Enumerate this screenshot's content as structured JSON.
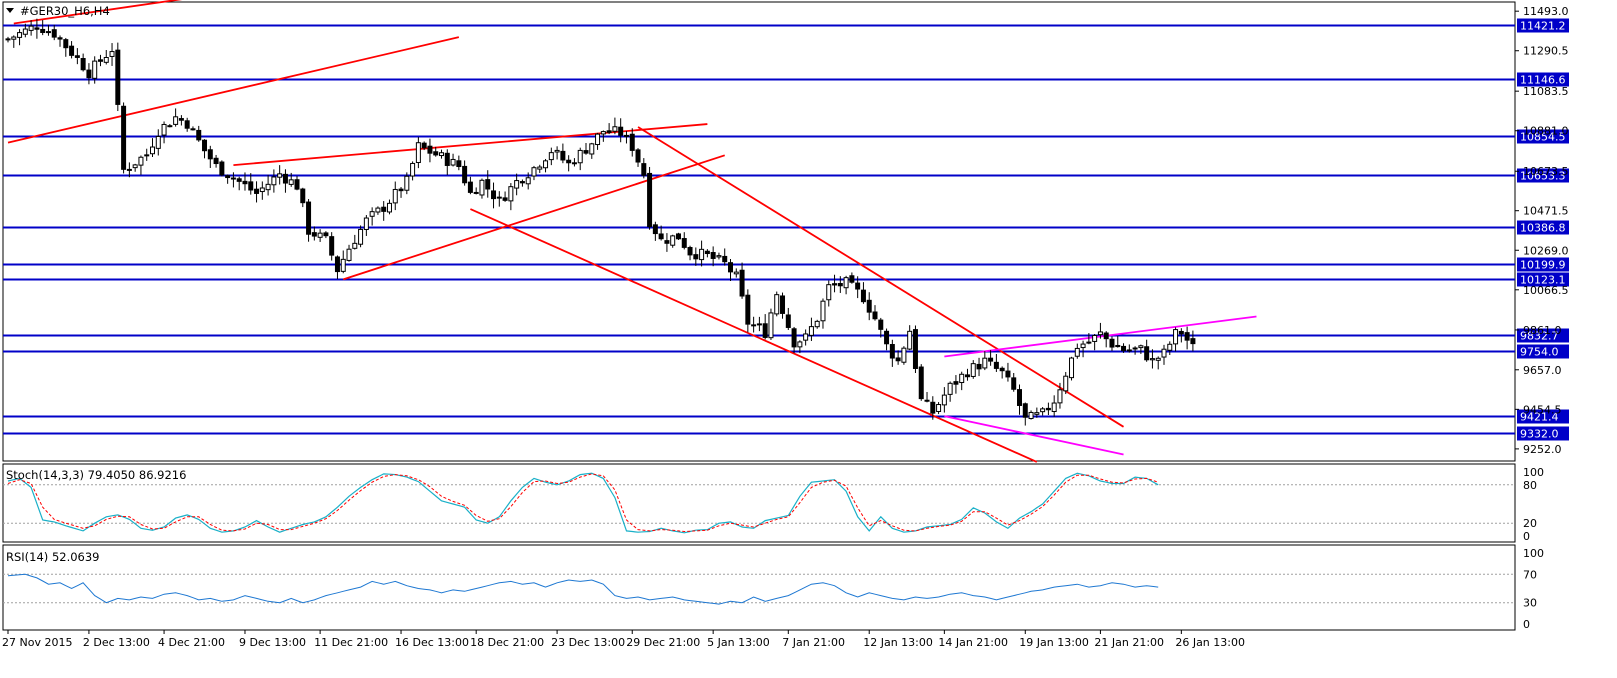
{
  "window": {
    "title": "#GER30_H6,H4",
    "menu_icon": "triangle-down-icon"
  },
  "colors": {
    "background": "#ffffff",
    "frame": "#000000",
    "level_line": "#0000c8",
    "level_label_bg": "#0000c8",
    "level_label_text": "#ffffff",
    "trendline_red": "#ff0000",
    "trendline_magenta": "#ff00ff",
    "bull_body": "#ffffff",
    "bear_body": "#000000",
    "stoch_main": "#1ab0c8",
    "stoch_signal": "#ff0000",
    "rsi": "#1e78d2",
    "indicator_level": "#a0a0a0"
  },
  "price_axis": {
    "ticks": [
      "11493.0",
      "11290.5",
      "11083.5",
      "10881.0",
      "10673.5",
      "10471.5",
      "10269.0",
      "10066.5",
      "9861.0",
      "9657.0",
      "9454.5",
      "9252.0"
    ],
    "tick_values": [
      11493.0,
      11290.5,
      11083.5,
      10881.0,
      10673.5,
      10471.5,
      10269.0,
      10066.5,
      9861.0,
      9657.0,
      9454.5,
      9252.0
    ]
  },
  "time_axis": {
    "labels": [
      "27 Nov 2015",
      "2 Dec 13:00",
      "4 Dec 21:00",
      "9 Dec 13:00",
      "11 Dec 21:00",
      "16 Dec 13:00",
      "18 Dec 21:00",
      "23 Dec 13:00",
      "29 Dec 21:00",
      "5 Jan 13:00",
      "7 Jan 21:00",
      "12 Jan 13:00",
      "14 Jan 21:00",
      "19 Jan 13:00",
      "21 Jan 21:00",
      "26 Jan 13:00"
    ],
    "label_bars": [
      0,
      14,
      27,
      41,
      54,
      68,
      81,
      95,
      108,
      122,
      135,
      149,
      162,
      176,
      189,
      203
    ]
  },
  "levels": [
    {
      "label": "11421.2",
      "value": 11421.2
    },
    {
      "label": "11146.6",
      "value": 11146.6
    },
    {
      "label": "10854.5",
      "value": 10854.5
    },
    {
      "label": "10653.3",
      "value": 10653.3
    },
    {
      "label": "10386.8",
      "value": 10386.8
    },
    {
      "label": "10199.9",
      "value": 10199.9
    },
    {
      "label": "10123.1",
      "value": 10123.1
    },
    {
      "label": "9832.7",
      "value": 9832.7
    },
    {
      "label": "9754.0",
      "value": 9754.0
    },
    {
      "label": "9421.4",
      "value": 9421.4
    },
    {
      "label": "9332.0",
      "value": 9332.0
    }
  ],
  "trendlines": [
    {
      "color": "red",
      "bar1": 1,
      "p1": 11430,
      "bar2": 50,
      "p2": 11640
    },
    {
      "color": "red",
      "bar1": 0,
      "p1": 10820,
      "bar2": 78,
      "p2": 11360
    },
    {
      "color": "red",
      "bar1": 39,
      "p1": 10705,
      "bar2": 121,
      "p2": 10915
    },
    {
      "color": "red",
      "bar1": 58,
      "p1": 10120,
      "bar2": 124,
      "p2": 10755
    },
    {
      "color": "red",
      "bar1": 80,
      "p1": 10480,
      "bar2": 178,
      "p2": 9185
    },
    {
      "color": "red",
      "bar1": 109,
      "p1": 10900,
      "bar2": 193,
      "p2": 9365
    },
    {
      "color": "magenta",
      "bar1": 162,
      "p1": 9725,
      "bar2": 216,
      "p2": 9930
    },
    {
      "color": "magenta",
      "bar1": 162,
      "p1": 9420,
      "bar2": 193,
      "p2": 9223
    }
  ],
  "stochastic": {
    "label": "Stoch(14,3,3) 79.4050 86.9216",
    "levels": [
      80,
      20
    ],
    "axis_ticks": [
      "100",
      "80",
      "20",
      "0"
    ]
  },
  "rsi": {
    "label": "RSI(14) 52.0639",
    "levels": [
      70,
      30
    ],
    "axis_ticks": [
      "100",
      "70",
      "30",
      "0"
    ]
  },
  "chart_data": {
    "type": "candlestick",
    "title": "#GER30_H6,H4",
    "ylim": [
      9190,
      11540
    ],
    "grid": false,
    "bar_count": 206,
    "x_labels": [
      "27 Nov 2015",
      "2 Dec 13:00",
      "4 Dec 21:00",
      "9 Dec 13:00",
      "11 Dec 21:00",
      "16 Dec 13:00",
      "18 Dec 21:00",
      "23 Dec 13:00",
      "29 Dec 21:00",
      "5 Jan 13:00",
      "7 Jan 21:00",
      "12 Jan 13:00",
      "14 Jan 21:00",
      "19 Jan 13:00",
      "21 Jan 21:00",
      "26 Jan 13:00"
    ],
    "close_path": [
      [
        0,
        11350
      ],
      [
        5,
        11420
      ],
      [
        8,
        11380
      ],
      [
        12,
        11250
      ],
      [
        14,
        11180
      ],
      [
        18,
        11300
      ],
      [
        20,
        10680
      ],
      [
        24,
        10760
      ],
      [
        26,
        10880
      ],
      [
        29,
        10950
      ],
      [
        31,
        10920
      ],
      [
        34,
        10780
      ],
      [
        36,
        10700
      ],
      [
        40,
        10620
      ],
      [
        43,
        10560
      ],
      [
        47,
        10660
      ],
      [
        50,
        10600
      ],
      [
        52,
        10370
      ],
      [
        55,
        10320
      ],
      [
        57,
        10170
      ],
      [
        59,
        10280
      ],
      [
        62,
        10420
      ],
      [
        65,
        10490
      ],
      [
        69,
        10620
      ],
      [
        71,
        10800
      ],
      [
        74,
        10760
      ],
      [
        78,
        10700
      ],
      [
        80,
        10560
      ],
      [
        82,
        10620
      ],
      [
        85,
        10520
      ],
      [
        88,
        10620
      ],
      [
        91,
        10690
      ],
      [
        94,
        10780
      ],
      [
        97,
        10710
      ],
      [
        100,
        10790
      ],
      [
        103,
        10880
      ],
      [
        106,
        10870
      ],
      [
        108,
        10800
      ],
      [
        110,
        10660
      ],
      [
        111,
        10420
      ],
      [
        113,
        10320
      ],
      [
        116,
        10340
      ],
      [
        118,
        10260
      ],
      [
        121,
        10240
      ],
      [
        124,
        10200
      ],
      [
        126,
        10130
      ],
      [
        128,
        9900
      ],
      [
        131,
        9850
      ],
      [
        133,
        10050
      ],
      [
        136,
        9800
      ],
      [
        138,
        9820
      ],
      [
        140,
        9920
      ],
      [
        142,
        10080
      ],
      [
        145,
        10100
      ],
      [
        148,
        10030
      ],
      [
        150,
        9920
      ],
      [
        152,
        9780
      ],
      [
        154,
        9700
      ],
      [
        156,
        9860
      ],
      [
        158,
        9500
      ],
      [
        160,
        9440
      ],
      [
        163,
        9570
      ],
      [
        166,
        9650
      ],
      [
        169,
        9700
      ],
      [
        172,
        9640
      ],
      [
        174,
        9550
      ],
      [
        176,
        9400
      ],
      [
        179,
        9430
      ],
      [
        181,
        9500
      ],
      [
        183,
        9640
      ],
      [
        185,
        9780
      ],
      [
        187,
        9800
      ],
      [
        189,
        9840
      ],
      [
        191,
        9790
      ],
      [
        193,
        9760
      ],
      [
        196,
        9760
      ],
      [
        198,
        9700
      ],
      [
        200,
        9740
      ],
      [
        202,
        9840
      ],
      [
        203,
        9850
      ],
      [
        205,
        9770
      ]
    ],
    "stoch_path": [
      [
        0,
        86
      ],
      [
        2,
        90
      ],
      [
        4,
        76
      ],
      [
        6,
        25
      ],
      [
        8,
        22
      ],
      [
        10,
        16
      ],
      [
        13,
        8
      ],
      [
        15,
        20
      ],
      [
        17,
        30
      ],
      [
        19,
        33
      ],
      [
        21,
        26
      ],
      [
        23,
        12
      ],
      [
        25,
        9
      ],
      [
        27,
        14
      ],
      [
        29,
        28
      ],
      [
        31,
        33
      ],
      [
        33,
        26
      ],
      [
        35,
        12
      ],
      [
        37,
        6
      ],
      [
        39,
        8
      ],
      [
        41,
        14
      ],
      [
        43,
        24
      ],
      [
        45,
        14
      ],
      [
        47,
        6
      ],
      [
        49,
        12
      ],
      [
        51,
        18
      ],
      [
        53,
        22
      ],
      [
        55,
        30
      ],
      [
        57,
        45
      ],
      [
        59,
        62
      ],
      [
        61,
        76
      ],
      [
        63,
        88
      ],
      [
        65,
        97
      ],
      [
        67,
        96
      ],
      [
        69,
        92
      ],
      [
        71,
        85
      ],
      [
        73,
        70
      ],
      [
        75,
        55
      ],
      [
        77,
        50
      ],
      [
        79,
        45
      ],
      [
        81,
        25
      ],
      [
        83,
        20
      ],
      [
        85,
        30
      ],
      [
        87,
        55
      ],
      [
        89,
        76
      ],
      [
        91,
        90
      ],
      [
        93,
        84
      ],
      [
        95,
        80
      ],
      [
        97,
        86
      ],
      [
        99,
        96
      ],
      [
        101,
        98
      ],
      [
        103,
        90
      ],
      [
        105,
        60
      ],
      [
        107,
        8
      ],
      [
        109,
        6
      ],
      [
        111,
        7
      ],
      [
        113,
        12
      ],
      [
        115,
        8
      ],
      [
        117,
        5
      ],
      [
        119,
        9
      ],
      [
        121,
        10
      ],
      [
        123,
        20
      ],
      [
        125,
        22
      ],
      [
        127,
        14
      ],
      [
        129,
        12
      ],
      [
        131,
        24
      ],
      [
        133,
        28
      ],
      [
        135,
        32
      ],
      [
        137,
        62
      ],
      [
        139,
        84
      ],
      [
        141,
        86
      ],
      [
        143,
        88
      ],
      [
        145,
        70
      ],
      [
        147,
        30
      ],
      [
        149,
        8
      ],
      [
        151,
        30
      ],
      [
        153,
        12
      ],
      [
        155,
        6
      ],
      [
        157,
        8
      ],
      [
        159,
        14
      ],
      [
        161,
        16
      ],
      [
        163,
        18
      ],
      [
        165,
        26
      ],
      [
        167,
        44
      ],
      [
        169,
        36
      ],
      [
        171,
        22
      ],
      [
        173,
        12
      ],
      [
        175,
        28
      ],
      [
        177,
        38
      ],
      [
        179,
        50
      ],
      [
        181,
        70
      ],
      [
        183,
        90
      ],
      [
        185,
        98
      ],
      [
        187,
        94
      ],
      [
        189,
        86
      ],
      [
        191,
        82
      ],
      [
        193,
        82
      ],
      [
        195,
        92
      ],
      [
        197,
        90
      ],
      [
        199,
        80
      ]
    ],
    "stoch_signal_path": [
      [
        0,
        82
      ],
      [
        2,
        88
      ],
      [
        4,
        82
      ],
      [
        6,
        45
      ],
      [
        8,
        26
      ],
      [
        10,
        20
      ],
      [
        13,
        12
      ],
      [
        15,
        16
      ],
      [
        17,
        26
      ],
      [
        19,
        31
      ],
      [
        21,
        30
      ],
      [
        23,
        18
      ],
      [
        25,
        11
      ],
      [
        27,
        12
      ],
      [
        29,
        22
      ],
      [
        31,
        30
      ],
      [
        33,
        30
      ],
      [
        35,
        18
      ],
      [
        37,
        9
      ],
      [
        39,
        8
      ],
      [
        41,
        11
      ],
      [
        43,
        20
      ],
      [
        45,
        18
      ],
      [
        47,
        10
      ],
      [
        49,
        10
      ],
      [
        51,
        15
      ],
      [
        53,
        20
      ],
      [
        55,
        27
      ],
      [
        57,
        40
      ],
      [
        59,
        56
      ],
      [
        61,
        71
      ],
      [
        63,
        84
      ],
      [
        65,
        93
      ],
      [
        67,
        96
      ],
      [
        69,
        94
      ],
      [
        71,
        88
      ],
      [
        73,
        77
      ],
      [
        75,
        62
      ],
      [
        77,
        54
      ],
      [
        79,
        48
      ],
      [
        81,
        32
      ],
      [
        83,
        23
      ],
      [
        85,
        27
      ],
      [
        87,
        46
      ],
      [
        89,
        68
      ],
      [
        91,
        85
      ],
      [
        93,
        86
      ],
      [
        95,
        82
      ],
      [
        97,
        84
      ],
      [
        99,
        92
      ],
      [
        101,
        97
      ],
      [
        103,
        94
      ],
      [
        105,
        72
      ],
      [
        107,
        25
      ],
      [
        109,
        10
      ],
      [
        111,
        8
      ],
      [
        113,
        10
      ],
      [
        115,
        9
      ],
      [
        117,
        7
      ],
      [
        119,
        8
      ],
      [
        121,
        9
      ],
      [
        123,
        16
      ],
      [
        125,
        20
      ],
      [
        127,
        17
      ],
      [
        129,
        14
      ],
      [
        131,
        20
      ],
      [
        133,
        26
      ],
      [
        135,
        30
      ],
      [
        137,
        52
      ],
      [
        139,
        76
      ],
      [
        141,
        84
      ],
      [
        143,
        87
      ],
      [
        145,
        78
      ],
      [
        147,
        44
      ],
      [
        149,
        16
      ],
      [
        151,
        24
      ],
      [
        153,
        16
      ],
      [
        155,
        9
      ],
      [
        157,
        8
      ],
      [
        159,
        12
      ],
      [
        161,
        15
      ],
      [
        163,
        17
      ],
      [
        165,
        23
      ],
      [
        167,
        38
      ],
      [
        169,
        38
      ],
      [
        171,
        28
      ],
      [
        173,
        17
      ],
      [
        175,
        24
      ],
      [
        177,
        34
      ],
      [
        179,
        46
      ],
      [
        181,
        64
      ],
      [
        183,
        84
      ],
      [
        185,
        95
      ],
      [
        187,
        95
      ],
      [
        189,
        89
      ],
      [
        191,
        84
      ],
      [
        193,
        83
      ],
      [
        195,
        89
      ],
      [
        197,
        90
      ],
      [
        199,
        84
      ]
    ],
    "rsi_path": [
      [
        0,
        68
      ],
      [
        3,
        70
      ],
      [
        5,
        65
      ],
      [
        7,
        56
      ],
      [
        9,
        58
      ],
      [
        11,
        50
      ],
      [
        13,
        58
      ],
      [
        15,
        40
      ],
      [
        17,
        30
      ],
      [
        19,
        36
      ],
      [
        21,
        34
      ],
      [
        23,
        38
      ],
      [
        25,
        36
      ],
      [
        27,
        42
      ],
      [
        29,
        44
      ],
      [
        31,
        40
      ],
      [
        33,
        34
      ],
      [
        35,
        36
      ],
      [
        37,
        32
      ],
      [
        39,
        34
      ],
      [
        41,
        40
      ],
      [
        43,
        36
      ],
      [
        45,
        32
      ],
      [
        47,
        30
      ],
      [
        49,
        36
      ],
      [
        51,
        30
      ],
      [
        53,
        34
      ],
      [
        55,
        40
      ],
      [
        57,
        44
      ],
      [
        59,
        48
      ],
      [
        61,
        52
      ],
      [
        63,
        60
      ],
      [
        65,
        56
      ],
      [
        67,
        60
      ],
      [
        69,
        54
      ],
      [
        71,
        50
      ],
      [
        73,
        48
      ],
      [
        75,
        44
      ],
      [
        77,
        48
      ],
      [
        79,
        46
      ],
      [
        81,
        50
      ],
      [
        83,
        54
      ],
      [
        85,
        58
      ],
      [
        87,
        60
      ],
      [
        89,
        56
      ],
      [
        91,
        58
      ],
      [
        93,
        52
      ],
      [
        95,
        58
      ],
      [
        97,
        62
      ],
      [
        99,
        60
      ],
      [
        101,
        62
      ],
      [
        103,
        56
      ],
      [
        105,
        40
      ],
      [
        107,
        36
      ],
      [
        109,
        38
      ],
      [
        111,
        34
      ],
      [
        113,
        36
      ],
      [
        115,
        38
      ],
      [
        117,
        34
      ],
      [
        119,
        32
      ],
      [
        121,
        30
      ],
      [
        123,
        28
      ],
      [
        125,
        32
      ],
      [
        127,
        30
      ],
      [
        129,
        38
      ],
      [
        131,
        32
      ],
      [
        133,
        36
      ],
      [
        135,
        40
      ],
      [
        137,
        48
      ],
      [
        139,
        56
      ],
      [
        141,
        58
      ],
      [
        143,
        54
      ],
      [
        145,
        44
      ],
      [
        147,
        38
      ],
      [
        149,
        44
      ],
      [
        151,
        40
      ],
      [
        153,
        36
      ],
      [
        155,
        34
      ],
      [
        157,
        38
      ],
      [
        159,
        36
      ],
      [
        161,
        38
      ],
      [
        163,
        42
      ],
      [
        165,
        44
      ],
      [
        167,
        40
      ],
      [
        169,
        38
      ],
      [
        171,
        34
      ],
      [
        173,
        38
      ],
      [
        175,
        42
      ],
      [
        177,
        46
      ],
      [
        179,
        48
      ],
      [
        181,
        52
      ],
      [
        183,
        54
      ],
      [
        185,
        56
      ],
      [
        187,
        52
      ],
      [
        189,
        54
      ],
      [
        191,
        58
      ],
      [
        193,
        56
      ],
      [
        195,
        52
      ],
      [
        197,
        54
      ],
      [
        199,
        52
      ]
    ]
  }
}
